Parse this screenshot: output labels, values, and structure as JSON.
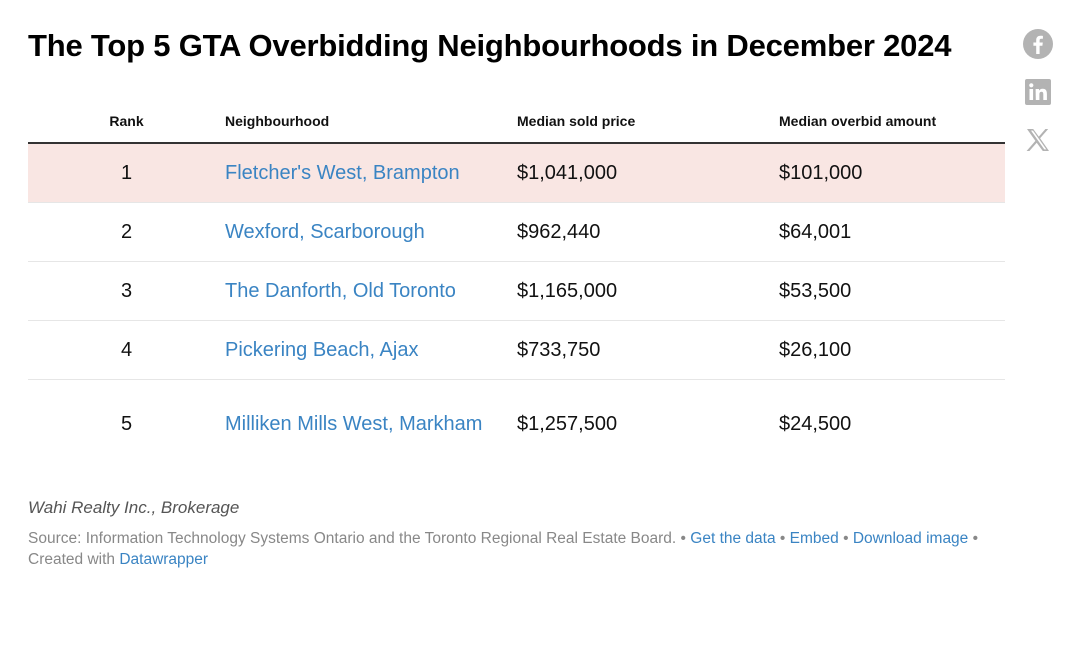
{
  "title": "The Top 5 GTA Overbidding Neighbourhoods in December 2024",
  "share": {
    "facebook_icon": "facebook-icon",
    "linkedin_icon": "linkedin-icon",
    "x_icon": "x-icon",
    "icon_color": "#b3b3b3"
  },
  "chart_data": {
    "type": "table",
    "columns": [
      "Rank",
      "Neighbourhood",
      "Median sold price",
      "Median overbid amount"
    ],
    "rows": [
      {
        "rank": "1",
        "neighbourhood": "Fletcher's West, Brampton",
        "median_sold_price": "$1,041,000",
        "median_overbid_amount": "$101,000"
      },
      {
        "rank": "2",
        "neighbourhood": "Wexford, Scarborough",
        "median_sold_price": "$962,440",
        "median_overbid_amount": "$64,001"
      },
      {
        "rank": "3",
        "neighbourhood": "The Danforth, Old Toronto",
        "median_sold_price": "$1,165,000",
        "median_overbid_amount": "$53,500"
      },
      {
        "rank": "4",
        "neighbourhood": "Pickering Beach, Ajax",
        "median_sold_price": "$733,750",
        "median_overbid_amount": "$26,100"
      },
      {
        "rank": "5",
        "neighbourhood": "Milliken Mills West, Markham",
        "median_sold_price": "$1,257,500",
        "median_overbid_amount": "$24,500"
      }
    ],
    "highlight_row_color": "#f9e6e3",
    "link_color": "#3a84c3"
  },
  "footer": {
    "credit": "Wahi Realty Inc., Brokerage",
    "source": "Source: Information Technology Systems Ontario and the Toronto Regional Real Estate Board.",
    "get_data": "Get the data",
    "embed": "Embed",
    "download_image": "Download image",
    "created_with": "Created with",
    "datawrapper": "Datawrapper",
    "separator": "•"
  }
}
